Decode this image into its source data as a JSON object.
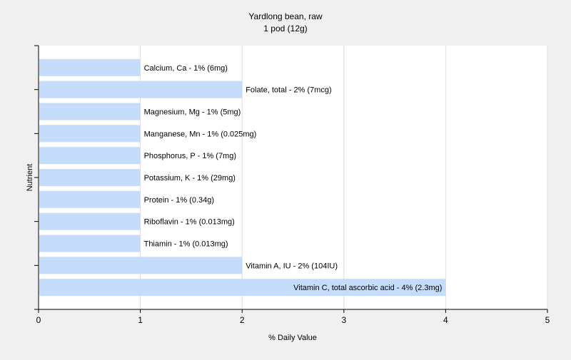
{
  "chart_data": {
    "type": "bar",
    "orientation": "horizontal",
    "title": "Yardlong bean, raw",
    "subtitle": "1 pod (12g)",
    "xlabel": "% Daily Value",
    "ylabel": "Nutrient",
    "xlim": [
      0,
      5
    ],
    "xticks": [
      "0",
      "1",
      "2",
      "3",
      "4",
      "5"
    ],
    "grid": true,
    "bar_color": "#c5dcfa",
    "plot_background": "#ffffff",
    "categories": [
      "Calcium, Ca",
      "Folate, total",
      "Magnesium, Mg",
      "Manganese, Mn",
      "Phosphorus, P",
      "Potassium, K",
      "Protein",
      "Riboflavin",
      "Thiamin",
      "Vitamin A, IU",
      "Vitamin C, total ascorbic acid"
    ],
    "values": [
      1,
      2,
      1,
      1,
      1,
      1,
      1,
      1,
      1,
      2,
      4
    ],
    "labels": [
      "Calcium, Ca - 1% (6mg)",
      "Folate, total - 2% (7mcg)",
      "Magnesium, Mg - 1% (5mg)",
      "Manganese, Mn - 1% (0.025mg)",
      "Phosphorus, P - 1% (7mg)",
      "Potassium, K - 1% (29mg)",
      "Protein - 1% (0.34g)",
      "Riboflavin - 1% (0.013mg)",
      "Thiamin - 1% (0.013mg)",
      "Vitamin A, IU - 2% (104IU)",
      "Vitamin C, total ascorbic acid - 4% (2.3mg)"
    ]
  }
}
